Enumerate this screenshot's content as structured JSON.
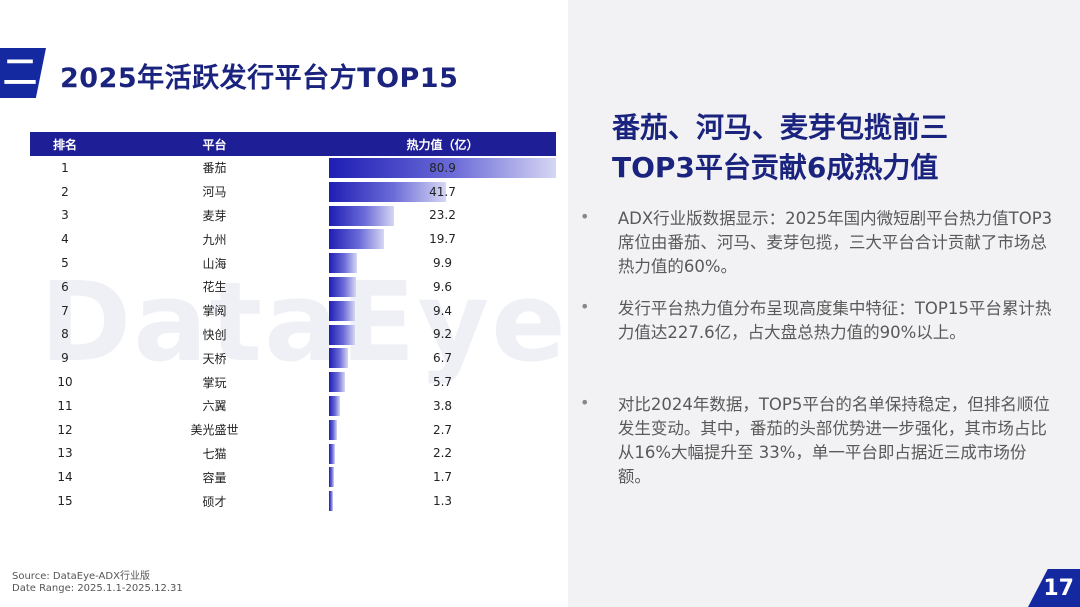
{
  "section": {
    "number": "二",
    "title": "2025年活跃发行平台方TOP15"
  },
  "watermark": "DataEye",
  "table": {
    "headers": [
      "排名",
      "平台",
      "热力值（亿）"
    ],
    "rows": [
      {
        "rank": "1",
        "platform": "番茄",
        "value": "80.9"
      },
      {
        "rank": "2",
        "platform": "河马",
        "value": "41.7"
      },
      {
        "rank": "3",
        "platform": "麦芽",
        "value": "23.2"
      },
      {
        "rank": "4",
        "platform": "九州",
        "value": "19.7"
      },
      {
        "rank": "5",
        "platform": "山海",
        "value": "9.9"
      },
      {
        "rank": "6",
        "platform": "花生",
        "value": "9.6"
      },
      {
        "rank": "7",
        "platform": "掌阅",
        "value": "9.4"
      },
      {
        "rank": "8",
        "platform": "快创",
        "value": "9.2"
      },
      {
        "rank": "9",
        "platform": "天桥",
        "value": "6.7"
      },
      {
        "rank": "10",
        "platform": "掌玩",
        "value": "5.7"
      },
      {
        "rank": "11",
        "platform": "六翼",
        "value": "3.8"
      },
      {
        "rank": "12",
        "platform": "美光盛世",
        "value": "2.7"
      },
      {
        "rank": "13",
        "platform": "七猫",
        "value": "2.2"
      },
      {
        "rank": "14",
        "platform": "容量",
        "value": "1.7"
      },
      {
        "rank": "15",
        "platform": "硕才",
        "value": "1.3"
      }
    ]
  },
  "source": {
    "line1": "Source:  DataEye-ADX行业版",
    "line2": "Date Range:  2025.1.1-2025.12.31"
  },
  "headline": {
    "line1": "番茄、河马、麦芽包揽前三",
    "line2": "TOP3平台贡献6成热力值"
  },
  "bullets": [
    "ADX行业版数据显示：2025年国内微短剧平台热力值TOP3席位由番茄、河马、麦芽包揽，三大平台合计贡献了市场总热力值的60%。",
    "发行平台热力值分布呈现高度集中特征：TOP15平台累计热力值达227.6亿，占大盘总热力值的90%以上。",
    "对比2024年数据，TOP5平台的名单保持稳定，但排名顺位发生变动。其中，番茄的头部优势进一步强化，其市场占比从16%大幅提升至 33%，单一平台即占据近三成市场份额。"
  ],
  "bullet_symbol": "•",
  "page_number": "17",
  "colors": {
    "primary": "#1428a0",
    "header": "#1e1e96",
    "title": "#1a237e",
    "panel": "#f2f2f4"
  }
}
